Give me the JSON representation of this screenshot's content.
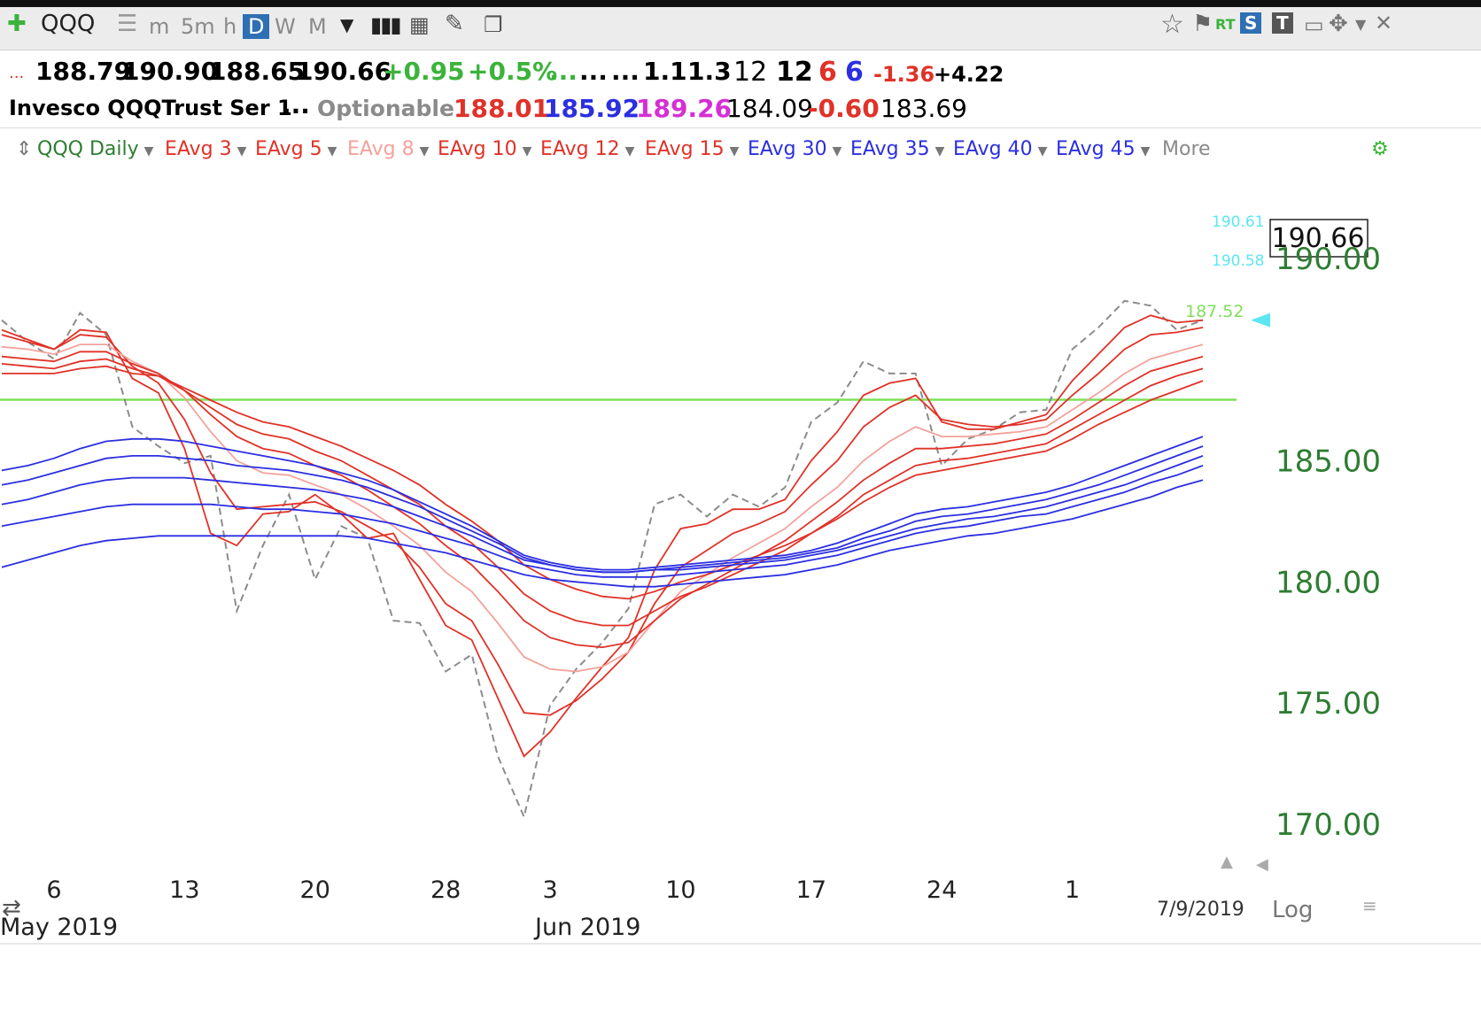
{
  "toolbar": {
    "symbol": "QQQ",
    "periods": [
      "m",
      "5m",
      "h",
      "D",
      "W",
      "M"
    ],
    "selected_period": "D",
    "rt_label": "RT",
    "s_label": "S",
    "t_label": "T"
  },
  "quote_row1": {
    "open": "188.79",
    "high": "190.90",
    "low": "188.65",
    "close": "190.66",
    "change": "+0.95",
    "change_pct": "+0.5%",
    "dots1": "...",
    "dots2": "...",
    "dots3": "...",
    "v1": "1.1",
    "v2": "1.3",
    "v3": "12",
    "v4": "12",
    "v5": "6",
    "v6": "6",
    "v7": "-1.36",
    "v8": "+4.22"
  },
  "quote_row2": {
    "name": "Invesco QQQTrust Ser 1",
    "dots": "...",
    "optionable": "Optionable",
    "p1": "188.01",
    "p2": "185.92",
    "p3": "189.26",
    "p4": "184.09",
    "p5": "-0.60",
    "p6": "183.69"
  },
  "legend": {
    "series_label": "QQQ Daily",
    "items": [
      "EAvg 3",
      "EAvg 5",
      "EAvg 8",
      "EAvg 10",
      "EAvg 12",
      "EAvg 15",
      "EAvg 30",
      "EAvg 35",
      "EAvg 40",
      "EAvg 45"
    ],
    "more": "More"
  },
  "chart_data": {
    "type": "line",
    "title": "QQQ Daily",
    "ylim": [
      168.5,
      197
    ],
    "yticks": [
      "185.00",
      "180.00",
      "175.00",
      "170.00"
    ],
    "y_top_label": "190.00",
    "x_tick_labels": [
      "6",
      "13",
      "20",
      "28",
      "3",
      "10",
      "17",
      "24",
      "1"
    ],
    "x_period_labels": [
      "May 2019",
      "Jun 2019"
    ],
    "last_date": "7/9/2019",
    "log_label": "Log",
    "last_price_label": "190.66",
    "cyan_labels": [
      "190.61",
      "190.58"
    ],
    "green_label": "187.52",
    "green_line": 187.52,
    "colors": {
      "price": "#8c8c8c",
      "red": "#e03228",
      "pink": "#f3a29c",
      "blue": "#2b2fe0",
      "green": "#7fe05a",
      "axis": "#2e7d32",
      "cyan": "#5ce6ef"
    },
    "x": [
      "2019-05-02",
      "2019-05-03",
      "2019-05-06",
      "2019-05-07",
      "2019-05-08",
      "2019-05-09",
      "2019-05-10",
      "2019-05-13",
      "2019-05-14",
      "2019-05-15",
      "2019-05-16",
      "2019-05-17",
      "2019-05-20",
      "2019-05-21",
      "2019-05-22",
      "2019-05-23",
      "2019-05-24",
      "2019-05-28",
      "2019-05-29",
      "2019-05-30",
      "2019-05-31",
      "2019-06-03",
      "2019-06-04",
      "2019-06-05",
      "2019-06-06",
      "2019-06-07",
      "2019-06-10",
      "2019-06-11",
      "2019-06-12",
      "2019-06-13",
      "2019-06-14",
      "2019-06-17",
      "2019-06-18",
      "2019-06-19",
      "2019-06-20",
      "2019-06-21",
      "2019-06-24",
      "2019-06-25",
      "2019-06-26",
      "2019-06-27",
      "2019-06-28",
      "2019-07-01",
      "2019-07-02",
      "2019-07-03",
      "2019-07-05",
      "2019-07-08",
      "2019-07-09"
    ],
    "series": [
      {
        "values": [
          190.8,
          189.9,
          189.2,
          191.1,
          190.2,
          186.4,
          185.6,
          184.9,
          185.2,
          178.8,
          181.5,
          183.6,
          180.1,
          182.3,
          181.8,
          178.4,
          178.3,
          176.3,
          177.0,
          172.8,
          170.3,
          174.9,
          176.4,
          177.5,
          178.9,
          183.2,
          183.6,
          182.7,
          183.6,
          183.1,
          183.9,
          186.6,
          187.4,
          189.1,
          188.6,
          188.6,
          184.8,
          185.9,
          186.3,
          187.0,
          187.1,
          189.6,
          190.5,
          191.6,
          191.4,
          190.4,
          190.8
        ],
        "color": "#8c8c8c",
        "dash": true
      },
      {
        "values": [
          190.4,
          190.0,
          189.6,
          190.4,
          190.3,
          188.4,
          187.8,
          185.5,
          182.0,
          181.5,
          182.8,
          182.9,
          183.6,
          182.8,
          181.8,
          182.0,
          180.1,
          178.2,
          177.6,
          175.2,
          172.8,
          173.8,
          175.2,
          176.5,
          177.7,
          180.5,
          182.2,
          182.4,
          183.0,
          183.0,
          183.4,
          185.0,
          186.2,
          187.7,
          188.2,
          188.4,
          186.6,
          186.3,
          186.3,
          186.6,
          186.9,
          188.3,
          189.4,
          190.5,
          191.0,
          190.7,
          190.8
        ]
      },
      {
        "values": [
          190.2,
          189.9,
          189.6,
          190.2,
          190.1,
          188.9,
          188.2,
          186.7,
          184.5,
          183.0,
          183.1,
          183.2,
          183.3,
          182.9,
          182.3,
          181.7,
          180.6,
          179.1,
          178.4,
          176.6,
          174.6,
          174.5,
          175.1,
          176.0,
          177.1,
          179.1,
          180.6,
          181.3,
          182.0,
          182.4,
          182.9,
          184.0,
          185.0,
          186.4,
          187.2,
          187.7,
          186.7,
          186.5,
          186.4,
          186.5,
          186.7,
          187.7,
          188.6,
          189.6,
          190.2,
          190.3,
          190.5
        ]
      },
      {
        "values": [
          189.7,
          189.6,
          189.4,
          189.8,
          189.8,
          189.1,
          188.6,
          187.6,
          186.2,
          185.0,
          184.5,
          184.4,
          184.0,
          183.6,
          183.0,
          182.3,
          181.5,
          180.4,
          179.6,
          178.3,
          176.9,
          176.4,
          176.3,
          176.5,
          177.1,
          178.4,
          179.6,
          180.3,
          181.0,
          181.6,
          182.2,
          183.1,
          183.9,
          185.0,
          185.8,
          186.4,
          186.0,
          186.0,
          186.1,
          186.2,
          186.4,
          187.1,
          187.8,
          188.6,
          189.2,
          189.5,
          189.8
        ],
        "color": "#f3a29c"
      },
      {
        "values": [
          189.3,
          189.2,
          189.1,
          189.5,
          189.5,
          189.0,
          188.6,
          187.9,
          186.9,
          186.0,
          185.5,
          185.3,
          184.8,
          184.4,
          183.8,
          183.1,
          182.4,
          181.5,
          180.7,
          179.6,
          178.4,
          177.7,
          177.4,
          177.3,
          177.5,
          178.4,
          179.3,
          179.9,
          180.5,
          181.1,
          181.7,
          182.5,
          183.3,
          184.2,
          184.9,
          185.5,
          185.5,
          185.6,
          185.7,
          185.9,
          186.1,
          186.7,
          187.4,
          188.1,
          188.7,
          189.0,
          189.3
        ]
      },
      {
        "values": [
          189.0,
          188.9,
          188.8,
          189.1,
          189.2,
          188.8,
          188.5,
          187.9,
          187.2,
          186.5,
          186.1,
          185.9,
          185.4,
          185.0,
          184.4,
          183.8,
          183.2,
          182.3,
          181.6,
          180.6,
          179.5,
          178.8,
          178.4,
          178.2,
          178.2,
          178.8,
          179.4,
          179.8,
          180.3,
          180.8,
          181.3,
          182.0,
          182.7,
          183.6,
          184.2,
          184.8,
          185.0,
          185.1,
          185.3,
          185.5,
          185.7,
          186.3,
          186.9,
          187.5,
          188.1,
          188.5,
          188.8
        ]
      },
      {
        "values": [
          188.6,
          188.6,
          188.6,
          188.8,
          188.9,
          188.6,
          188.5,
          188.0,
          187.5,
          187.0,
          186.6,
          186.4,
          186.0,
          185.6,
          185.1,
          184.6,
          184.0,
          183.2,
          182.5,
          181.7,
          180.7,
          180.1,
          179.7,
          179.4,
          179.3,
          179.6,
          180.0,
          180.3,
          180.7,
          181.1,
          181.5,
          182.0,
          182.6,
          183.3,
          183.9,
          184.4,
          184.6,
          184.8,
          185.0,
          185.2,
          185.4,
          185.9,
          186.5,
          187.0,
          187.5,
          187.9,
          188.3
        ]
      },
      {
        "values": [
          184.6,
          184.8,
          185.1,
          185.5,
          185.8,
          185.9,
          185.9,
          185.8,
          185.6,
          185.4,
          185.2,
          185.0,
          184.8,
          184.5,
          184.2,
          183.8,
          183.3,
          182.8,
          182.3,
          181.7,
          181.1,
          180.8,
          180.6,
          180.5,
          180.5,
          180.6,
          180.7,
          180.8,
          180.9,
          181.0,
          181.1,
          181.3,
          181.6,
          182.0,
          182.4,
          182.8,
          183.0,
          183.1,
          183.3,
          183.5,
          183.7,
          184.0,
          184.4,
          184.8,
          185.2,
          185.6,
          186.0
        ],
        "color": "#2b2fe0"
      },
      {
        "values": [
          184.0,
          184.2,
          184.5,
          184.8,
          185.1,
          185.2,
          185.2,
          185.1,
          185.0,
          184.8,
          184.7,
          184.6,
          184.4,
          184.2,
          183.9,
          183.5,
          183.1,
          182.6,
          182.1,
          181.6,
          181.0,
          180.7,
          180.5,
          180.4,
          180.4,
          180.5,
          180.6,
          180.7,
          180.8,
          180.9,
          181.0,
          181.2,
          181.4,
          181.8,
          182.1,
          182.5,
          182.7,
          182.8,
          183.0,
          183.2,
          183.4,
          183.7,
          184.0,
          184.4,
          184.8,
          185.2,
          185.6
        ],
        "color": "#2b2fe0"
      },
      {
        "values": [
          183.2,
          183.4,
          183.7,
          184.0,
          184.2,
          184.3,
          184.3,
          184.3,
          184.2,
          184.1,
          184.0,
          183.9,
          183.8,
          183.6,
          183.4,
          183.1,
          182.7,
          182.3,
          181.9,
          181.4,
          180.9,
          180.7,
          180.5,
          180.4,
          180.4,
          180.5,
          180.5,
          180.6,
          180.7,
          180.8,
          180.9,
          181.1,
          181.3,
          181.6,
          181.9,
          182.2,
          182.4,
          182.6,
          182.7,
          182.9,
          183.1,
          183.4,
          183.7,
          184.0,
          184.4,
          184.8,
          185.2
        ],
        "color": "#2b2fe0"
      },
      {
        "values": [
          182.3,
          182.5,
          182.7,
          182.9,
          183.1,
          183.2,
          183.2,
          183.2,
          183.2,
          183.1,
          183.0,
          183.0,
          182.9,
          182.8,
          182.6,
          182.4,
          182.1,
          181.8,
          181.5,
          181.1,
          180.7,
          180.5,
          180.3,
          180.2,
          180.2,
          180.2,
          180.3,
          180.4,
          180.5,
          180.6,
          180.7,
          180.9,
          181.1,
          181.4,
          181.7,
          182.0,
          182.2,
          182.3,
          182.5,
          182.7,
          182.8,
          183.1,
          183.4,
          183.7,
          184.1,
          184.4,
          184.8
        ],
        "color": "#2b2fe0"
      },
      {
        "values": [
          180.6,
          180.9,
          181.2,
          181.5,
          181.7,
          181.8,
          181.9,
          181.9,
          181.9,
          181.9,
          181.9,
          181.9,
          181.9,
          181.9,
          181.8,
          181.6,
          181.4,
          181.2,
          180.9,
          180.6,
          180.3,
          180.1,
          180.0,
          179.9,
          179.8,
          179.8,
          179.9,
          180.0,
          180.1,
          180.2,
          180.3,
          180.5,
          180.7,
          181.0,
          181.3,
          181.5,
          181.7,
          181.9,
          182.0,
          182.2,
          182.4,
          182.6,
          182.9,
          183.2,
          183.5,
          183.9,
          184.2
        ],
        "color": "#2b2fe0"
      }
    ]
  }
}
